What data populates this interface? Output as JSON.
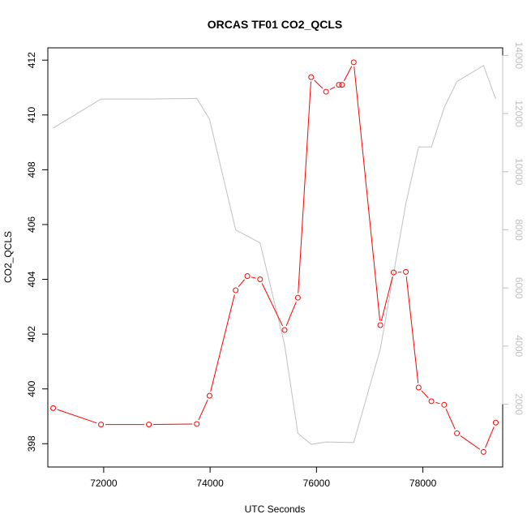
{
  "chart_data": {
    "type": "line",
    "title": "ORCAS TF01 CO2_QCLS",
    "xlabel": "UTC Seconds",
    "ylabel": "CO2_QCLS",
    "xlim": [
      70950,
      79500
    ],
    "ylim": [
      397.15,
      412.45
    ],
    "y2lim": [
      -160,
      14260
    ],
    "x_ticks": [
      "72000",
      "74000",
      "76000",
      "78000"
    ],
    "y_ticks": [
      "398",
      "400",
      "402",
      "404",
      "406",
      "408",
      "410",
      "412"
    ],
    "y2_ticks": [
      "2000",
      "4000",
      "6000",
      "8000",
      "10000",
      "12000",
      "14000"
    ],
    "series": [
      {
        "color": "#ff0000",
        "marker": "circle",
        "x": [
          71050,
          71950,
          72850,
          73750,
          73990,
          74480,
          74700,
          74940,
          75400,
          75650,
          75900,
          76180,
          76420,
          76480,
          76700,
          77200,
          77450,
          77680,
          77920,
          78160,
          78400,
          78640,
          79140,
          79370
        ],
        "y": [
          399.3,
          398.7,
          398.7,
          398.72,
          399.75,
          403.6,
          404.12,
          404.0,
          402.15,
          403.33,
          411.38,
          410.85,
          411.1,
          411.1,
          411.92,
          402.33,
          404.25,
          404.27,
          400.05,
          399.55,
          399.42,
          398.38,
          397.7,
          398.77
        ]
      },
      {
        "color": "#c0c0c0",
        "axis": "right",
        "x": [
          71050,
          71950,
          72850,
          73750,
          73990,
          74480,
          74940,
          75400,
          75650,
          75900,
          76180,
          76700,
          77200,
          77680,
          77920,
          78160,
          78400,
          78640,
          79140,
          79370
        ],
        "y": [
          11500,
          12500,
          12500,
          12520,
          11800,
          8000,
          7550,
          4050,
          1000,
          620,
          700,
          680,
          3900,
          8900,
          10850,
          10850,
          12200,
          13100,
          13650,
          12500
        ]
      }
    ]
  }
}
